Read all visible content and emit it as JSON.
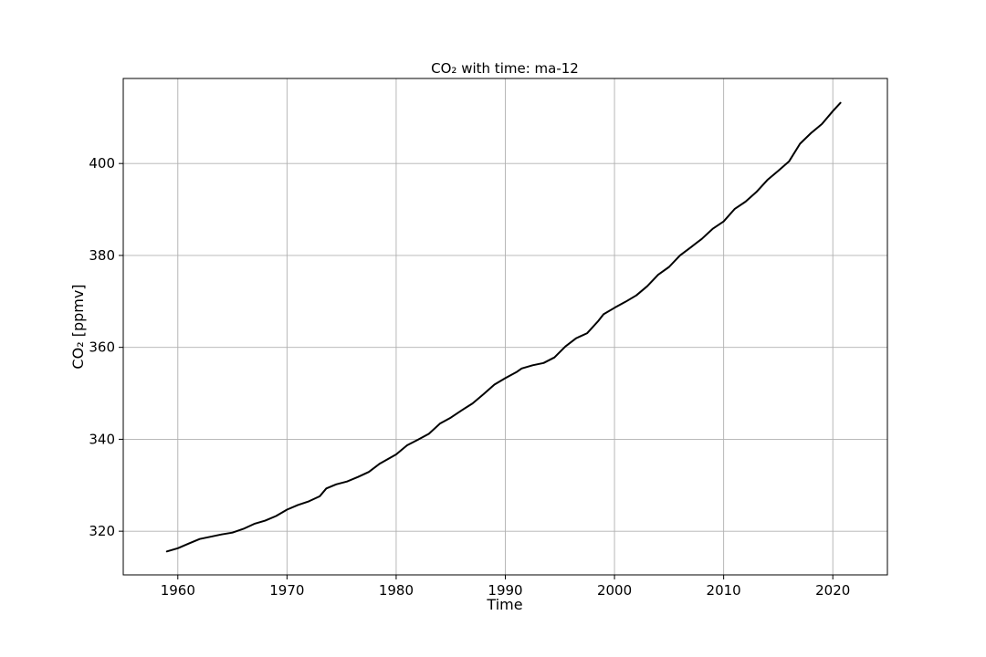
{
  "chart_data": {
    "type": "line",
    "title": "CO₂ with time: ma-12",
    "xlabel": "Time",
    "ylabel": "CO₂ [ppmv]",
    "xlim": [
      1955,
      2025
    ],
    "ylim": [
      310.5,
      418.5
    ],
    "xticks": [
      1960,
      1970,
      1980,
      1990,
      2000,
      2010,
      2020
    ],
    "yticks": [
      320,
      340,
      360,
      380,
      400
    ],
    "grid": true,
    "line_color": "#000000",
    "grid_color": "#b0b0b0",
    "series": [
      {
        "x": [
          1959.0,
          1960.0,
          1961.0,
          1962.0,
          1963.0,
          1964.0,
          1965.0,
          1966.0,
          1967.0,
          1968.0,
          1969.0,
          1970.0,
          1971.0,
          1972.0,
          1973.0,
          1973.6,
          1974.5,
          1975.5,
          1976.5,
          1977.5,
          1978.5,
          1980.0,
          1981.0,
          1982.0,
          1983.0,
          1984.0,
          1985.0,
          1986.0,
          1987.0,
          1988.0,
          1989.0,
          1990.0,
          1991.0,
          1991.5,
          1992.5,
          1993.5,
          1994.5,
          1995.5,
          1996.5,
          1997.5,
          1998.5,
          1999.0,
          2000.0,
          2001.0,
          2002.0,
          2003.0,
          2004.0,
          2005.0,
          2006.0,
          2007.0,
          2008.0,
          2009.0,
          2010.0,
          2011.0,
          2012.0,
          2013.0,
          2014.0,
          2015.0,
          2016.0,
          2017.0,
          2018.0,
          2019.0,
          2020.0,
          2020.7
        ],
        "values": [
          315.6,
          316.3,
          317.3,
          318.3,
          318.8,
          319.3,
          319.7,
          320.5,
          321.6,
          322.3,
          323.3,
          324.7,
          325.7,
          326.5,
          327.6,
          329.3,
          330.2,
          330.8,
          331.8,
          332.9,
          334.7,
          336.7,
          338.7,
          339.9,
          341.2,
          343.4,
          344.7,
          346.3,
          347.8,
          349.8,
          351.9,
          353.3,
          354.6,
          355.4,
          356.1,
          356.6,
          357.8,
          360.2,
          362.0,
          363.1,
          365.7,
          367.2,
          368.6,
          369.9,
          371.3,
          373.3,
          375.8,
          377.5,
          380.0,
          381.8,
          383.6,
          385.8,
          387.4,
          390.1,
          391.7,
          393.8,
          396.4,
          398.4,
          400.5,
          404.3,
          406.6,
          408.6,
          411.4,
          413.2
        ]
      }
    ]
  }
}
